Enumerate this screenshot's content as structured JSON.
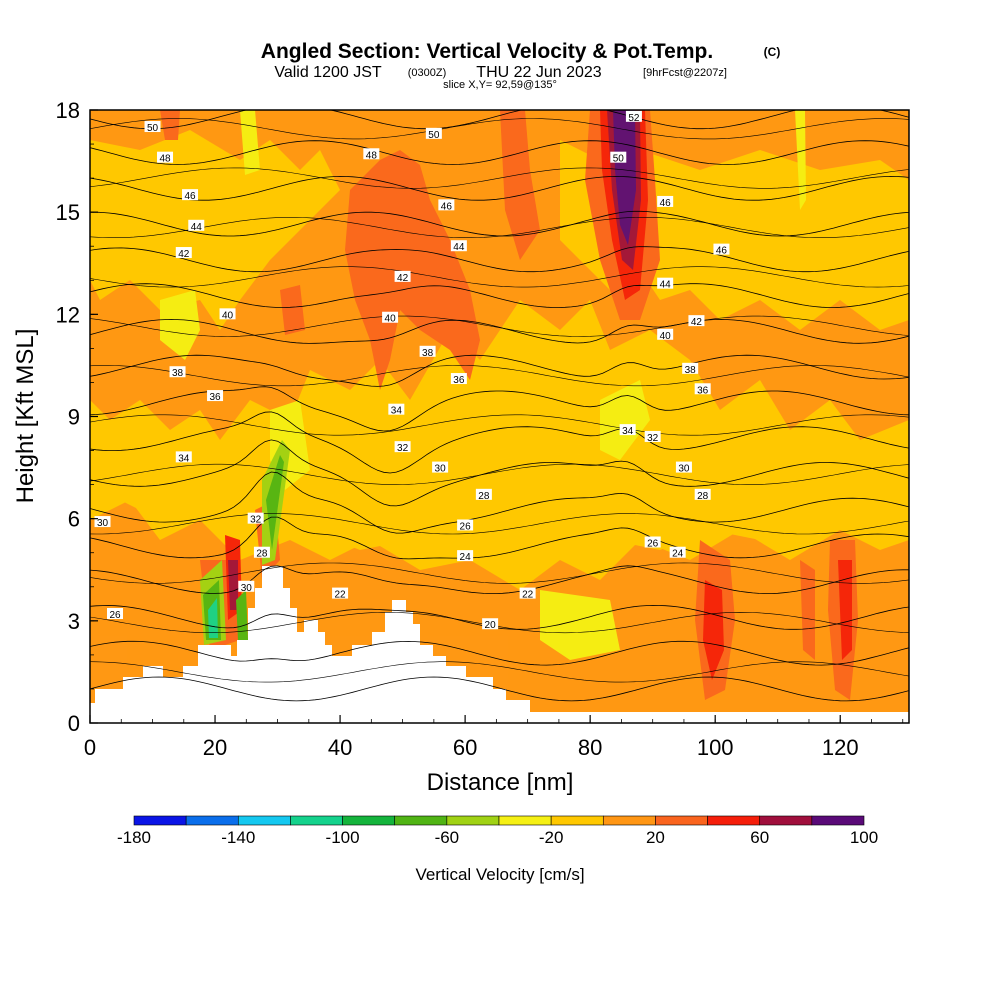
{
  "chart_data": {
    "type": "heatmap",
    "title": "Angled Section: Vertical Velocity & Pot.Temp.",
    "title_unit": "(C)",
    "subtitle": {
      "valid": "Valid 1200 JST",
      "utc": "(0300Z)",
      "date": "THU 22 Jun 2023",
      "forecast": "[9hrFcst@2207z]"
    },
    "slice_label": "slice X,Y= 92,59@135°",
    "xlabel": "Distance [nm]",
    "ylabel": "Height [Kft MSL]",
    "xlim": [
      0,
      131
    ],
    "ylim": [
      0,
      18
    ],
    "x_ticks": [
      "0",
      "20",
      "40",
      "60",
      "80",
      "100",
      "120"
    ],
    "y_ticks": [
      "0",
      "3",
      "6",
      "9",
      "12",
      "15",
      "18"
    ],
    "colorbar": {
      "label": "Vertical Velocity [cm/s]",
      "tick_labels": [
        "-180",
        "-140",
        "-100",
        "-60",
        "-20",
        "20",
        "60",
        "100"
      ],
      "bins": [
        -180,
        -160,
        -140,
        -120,
        -100,
        -80,
        -60,
        -40,
        -20,
        0,
        20,
        40,
        60,
        80,
        100
      ],
      "colors": [
        "#0a14e6",
        "#0a6eeb",
        "#14c8f0",
        "#14d28c",
        "#14b43c",
        "#50b414",
        "#a0d214",
        "#f5f014",
        "#ffc800",
        "#ff9614",
        "#fa641e",
        "#f51e0a",
        "#a00f3c",
        "#5a0a78"
      ]
    },
    "theta_contours": [
      {
        "value": 20,
        "label": "20"
      },
      {
        "value": 22,
        "label": "22"
      },
      {
        "value": 24,
        "label": "24"
      },
      {
        "value": 26,
        "label": "26"
      },
      {
        "value": 28,
        "label": "28"
      },
      {
        "value": 30,
        "label": "30"
      },
      {
        "value": 32,
        "label": "32"
      },
      {
        "value": 34,
        "label": "34"
      },
      {
        "value": 36,
        "label": "36"
      },
      {
        "value": 38,
        "label": "38"
      },
      {
        "value": 40,
        "label": "40"
      },
      {
        "value": 42,
        "label": "42"
      },
      {
        "value": 44,
        "label": "44"
      },
      {
        "value": 46,
        "label": "46"
      },
      {
        "value": 48,
        "label": "48"
      },
      {
        "value": 50,
        "label": "50"
      },
      {
        "value": 52,
        "label": "52"
      }
    ],
    "theta_labels": [
      {
        "x": 10,
        "y": 17.5,
        "text": "50"
      },
      {
        "x": 55,
        "y": 17.3,
        "text": "50"
      },
      {
        "x": 87,
        "y": 17.8,
        "text": "52"
      },
      {
        "x": 84.5,
        "y": 16.6,
        "text": "50"
      },
      {
        "x": 12,
        "y": 16.6,
        "text": "48"
      },
      {
        "x": 45,
        "y": 16.7,
        "text": "48"
      },
      {
        "x": 16,
        "y": 15.5,
        "text": "46"
      },
      {
        "x": 57,
        "y": 15.2,
        "text": "46"
      },
      {
        "x": 92,
        "y": 15.3,
        "text": "46"
      },
      {
        "x": 101,
        "y": 13.9,
        "text": "46"
      },
      {
        "x": 17,
        "y": 14.6,
        "text": "44"
      },
      {
        "x": 59,
        "y": 14.0,
        "text": "44"
      },
      {
        "x": 92,
        "y": 12.9,
        "text": "44"
      },
      {
        "x": 15,
        "y": 13.8,
        "text": "42"
      },
      {
        "x": 50,
        "y": 13.1,
        "text": "42"
      },
      {
        "x": 97,
        "y": 11.8,
        "text": "42"
      },
      {
        "x": 22,
        "y": 12.0,
        "text": "40"
      },
      {
        "x": 48,
        "y": 11.9,
        "text": "40"
      },
      {
        "x": 92,
        "y": 11.4,
        "text": "40"
      },
      {
        "x": 14,
        "y": 10.3,
        "text": "38"
      },
      {
        "x": 54,
        "y": 10.9,
        "text": "38"
      },
      {
        "x": 96,
        "y": 10.4,
        "text": "38"
      },
      {
        "x": 20,
        "y": 9.6,
        "text": "36"
      },
      {
        "x": 59,
        "y": 10.1,
        "text": "36"
      },
      {
        "x": 98,
        "y": 9.8,
        "text": "36"
      },
      {
        "x": 15,
        "y": 7.8,
        "text": "34"
      },
      {
        "x": 49,
        "y": 9.2,
        "text": "34"
      },
      {
        "x": 86,
        "y": 8.6,
        "text": "34"
      },
      {
        "x": 50,
        "y": 8.1,
        "text": "32"
      },
      {
        "x": 90,
        "y": 8.4,
        "text": "32"
      },
      {
        "x": 56,
        "y": 7.5,
        "text": "30"
      },
      {
        "x": 95,
        "y": 7.5,
        "text": "30"
      },
      {
        "x": 2,
        "y": 5.9,
        "text": "30"
      },
      {
        "x": 26.5,
        "y": 6.0,
        "text": "32"
      },
      {
        "x": 63,
        "y": 6.7,
        "text": "28"
      },
      {
        "x": 98,
        "y": 6.7,
        "text": "28"
      },
      {
        "x": 60,
        "y": 5.8,
        "text": "26"
      },
      {
        "x": 90,
        "y": 5.3,
        "text": "26"
      },
      {
        "x": 27.5,
        "y": 5.0,
        "text": "28"
      },
      {
        "x": 60,
        "y": 4.9,
        "text": "24"
      },
      {
        "x": 94,
        "y": 5.0,
        "text": "24"
      },
      {
        "x": 25,
        "y": 4.0,
        "text": "30"
      },
      {
        "x": 40,
        "y": 3.8,
        "text": "22"
      },
      {
        "x": 70,
        "y": 3.8,
        "text": "22"
      },
      {
        "x": 4,
        "y": 3.2,
        "text": "26"
      },
      {
        "x": 64,
        "y": 2.9,
        "text": "20"
      }
    ]
  }
}
